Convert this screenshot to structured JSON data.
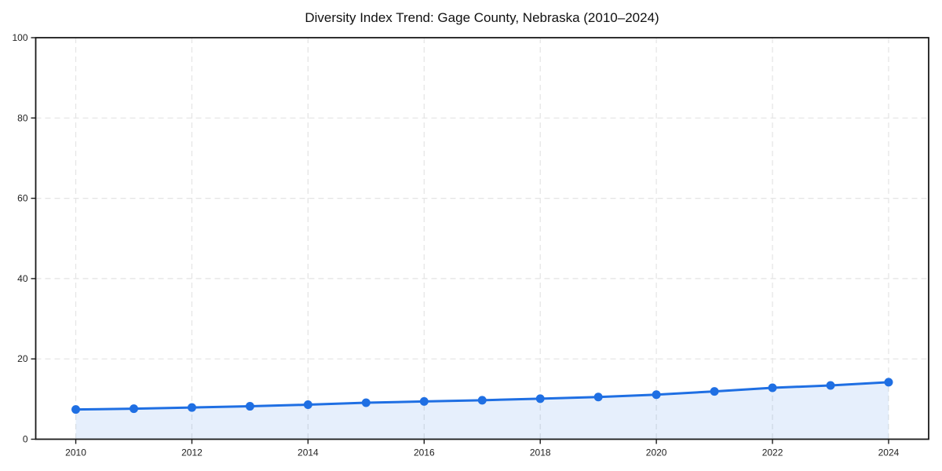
{
  "figure": {
    "background": "#ffffff"
  },
  "chart_data": {
    "type": "area",
    "title": "Diversity Index Trend: Gage County, Nebraska (2010–2024)",
    "x": [
      2010,
      2011,
      2012,
      2013,
      2014,
      2015,
      2016,
      2017,
      2018,
      2019,
      2020,
      2021,
      2022,
      2023,
      2024
    ],
    "series": [
      {
        "name": "Diversity Index",
        "values": [
          7.4,
          7.6,
          7.9,
          8.2,
          8.6,
          9.1,
          9.4,
          9.7,
          10.1,
          10.5,
          11.1,
          11.9,
          12.8,
          13.4,
          14.2
        ]
      }
    ],
    "xlabel": "",
    "ylabel": "",
    "xlim": [
      2009.31,
      2024.69
    ],
    "ylim": [
      0,
      100
    ],
    "xticks": [
      2010,
      2012,
      2014,
      2016,
      2018,
      2020,
      2022,
      2024
    ],
    "yticks": [
      0,
      20,
      40,
      60,
      80,
      100
    ],
    "grid": "dashed",
    "legend": "none",
    "marker": "circle",
    "colors": {
      "line": "#1f6fe3",
      "marker": "#1f6fe3",
      "fill": "rgba(31, 111, 227, 0.11)",
      "grid": "#e4e4e4",
      "axis": "#1a1a1a",
      "tick_label": "#222222",
      "title": "#111111"
    }
  }
}
